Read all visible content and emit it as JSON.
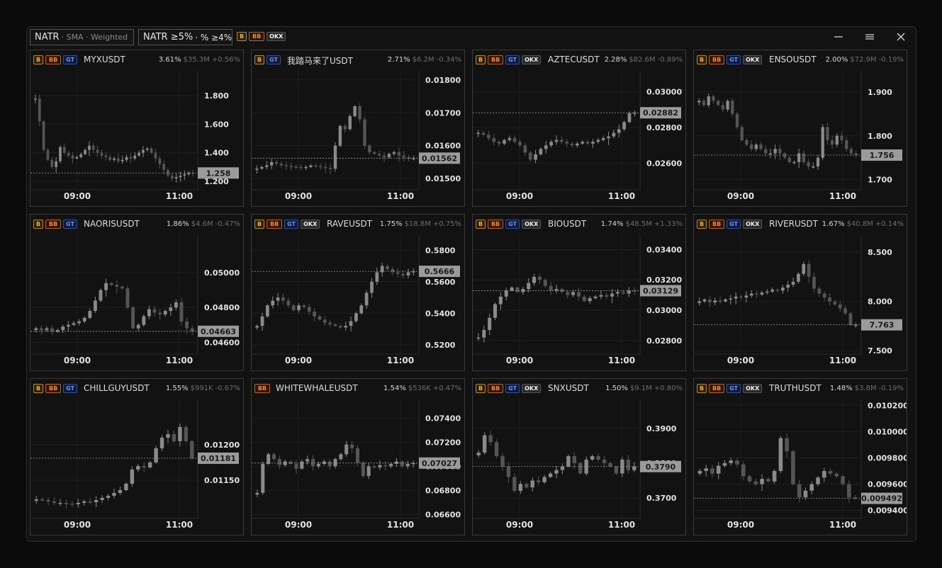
{
  "toolbar": {
    "natr_label": "NATR",
    "natr_sub": "· SMA · Weighted",
    "filter_label": "NATR ≥5%",
    "filter_sub": "· % ≥4%",
    "exchanges": [
      "B",
      "BB",
      "OKX"
    ]
  },
  "window_controls": {
    "minimize": "—",
    "maximize": "☰",
    "close": "✕"
  },
  "colors": {
    "accent_B": "#e8b335",
    "accent_BB": "#f0883a",
    "accent_GT": "#6d95ee",
    "accent_OKX": "#f0f0f0",
    "candle_up": "#8a8a8a",
    "candle_down": "#555555"
  },
  "panels": [
    {
      "symbol": "MYXUSDT",
      "exchanges": [
        "B",
        "BB",
        "GT"
      ],
      "natr": "3.61%",
      "volume": "$35.3M",
      "change": "+0.56%",
      "ticks": [
        "1.800",
        "1.600",
        "1.400",
        "1.200"
      ],
      "tick_values": [
        1.8,
        1.6,
        1.4,
        1.2
      ],
      "ymin": 1.15,
      "ymax": 1.98,
      "price": "1.258",
      "price_value": 1.258,
      "time_labels": [
        "09:00",
        "11:00"
      ],
      "series": [
        1.78,
        1.62,
        1.42,
        1.35,
        1.3,
        1.34,
        1.44,
        1.4,
        1.38,
        1.36,
        1.37,
        1.39,
        1.42,
        1.45,
        1.42,
        1.4,
        1.38,
        1.37,
        1.35,
        1.36,
        1.34,
        1.35,
        1.37,
        1.36,
        1.38,
        1.4,
        1.42,
        1.43,
        1.4,
        1.36,
        1.32,
        1.28,
        1.24,
        1.22,
        1.23,
        1.24,
        1.25,
        1.26,
        1.258
      ]
    },
    {
      "symbol": "我踏马来了USDT",
      "exchanges": [
        "B",
        "GT"
      ],
      "natr": "2.71%",
      "volume": "$6.2M",
      "change": "-0.34%",
      "ticks": [
        "0.01800",
        "0.01700",
        "0.01600",
        "0.01500"
      ],
      "tick_values": [
        0.018,
        0.017,
        0.016,
        0.015
      ],
      "ymin": 0.0147,
      "ymax": 0.0183,
      "price": "0.01562",
      "price_value": 0.01562,
      "time_labels": [
        "09:00",
        "11:00"
      ],
      "series": [
        0.0153,
        0.01535,
        0.0154,
        0.0155,
        0.01545,
        0.0154,
        0.01538,
        0.01536,
        0.01535,
        0.01533,
        0.01535,
        0.0154,
        0.01538,
        0.01535,
        0.01532,
        0.0153,
        0.016,
        0.0166,
        0.0165,
        0.0169,
        0.0172,
        0.0168,
        0.016,
        0.0158,
        0.01575,
        0.0157,
        0.01565,
        0.01575,
        0.0158,
        0.0157,
        0.01565,
        0.0156,
        0.01562
      ]
    },
    {
      "symbol": "AZTECUSDT",
      "exchanges": [
        "B",
        "BB",
        "GT",
        "OKX"
      ],
      "natr": "2.28%",
      "volume": "$82.6M",
      "change": "-0.89%",
      "ticks": [
        "0.03000",
        "0.02800",
        "0.02600"
      ],
      "tick_values": [
        0.03,
        0.028,
        0.026
      ],
      "ymin": 0.0246,
      "ymax": 0.0312,
      "price": "0.02882",
      "price_value": 0.02882,
      "time_labels": [
        "09:00",
        "11:00"
      ],
      "series": [
        0.0277,
        0.0276,
        0.0274,
        0.0272,
        0.0271,
        0.0273,
        0.0274,
        0.0272,
        0.027,
        0.0266,
        0.0262,
        0.0265,
        0.0268,
        0.027,
        0.0272,
        0.0273,
        0.0272,
        0.0271,
        0.027,
        0.0271,
        0.0272,
        0.0271,
        0.0272,
        0.0273,
        0.0274,
        0.0275,
        0.0277,
        0.0279,
        0.0283,
        0.0288,
        0.02882
      ]
    },
    {
      "symbol": "ENSOUSDT",
      "exchanges": [
        "B",
        "BB",
        "GT",
        "OKX"
      ],
      "natr": "2.00%",
      "volume": "$72.9M",
      "change": "-0.19%",
      "ticks": [
        "1.900",
        "1.800",
        "1.700"
      ],
      "tick_values": [
        1.9,
        1.8,
        1.7
      ],
      "ymin": 1.68,
      "ymax": 1.95,
      "price": "1.756",
      "price_value": 1.756,
      "time_labels": [
        "09:00",
        "11:00"
      ],
      "series": [
        1.88,
        1.87,
        1.89,
        1.88,
        1.87,
        1.86,
        1.88,
        1.85,
        1.82,
        1.79,
        1.78,
        1.77,
        1.78,
        1.77,
        1.76,
        1.76,
        1.77,
        1.76,
        1.75,
        1.74,
        1.74,
        1.76,
        1.74,
        1.73,
        1.73,
        1.75,
        1.82,
        1.79,
        1.78,
        1.8,
        1.79,
        1.77,
        1.76,
        1.756
      ]
    },
    {
      "symbol": "NAORISUSDT",
      "exchanges": [
        "B",
        "BB",
        "GT"
      ],
      "natr": "1.86%",
      "volume": "$4.6M",
      "change": "-0.47%",
      "ticks": [
        "0.05000",
        "0.04800",
        "0.04600"
      ],
      "tick_values": [
        0.05,
        0.048,
        0.046
      ],
      "ymin": 0.0454,
      "ymax": 0.0522,
      "price": "0.04663",
      "price_value": 0.04663,
      "time_labels": [
        "09:00",
        "11:00"
      ],
      "series": [
        0.0468,
        0.0467,
        0.0468,
        0.0466,
        0.0467,
        0.0469,
        0.047,
        0.0471,
        0.0472,
        0.0474,
        0.0478,
        0.0484,
        0.049,
        0.0494,
        0.0493,
        0.0492,
        0.0491,
        0.048,
        0.0468,
        0.047,
        0.0475,
        0.0479,
        0.0477,
        0.0476,
        0.0478,
        0.048,
        0.0483,
        0.0472,
        0.0468,
        0.04663
      ]
    },
    {
      "symbol": "RAVEUSDT",
      "exchanges": [
        "B",
        "BB",
        "GT",
        "OKX"
      ],
      "natr": "1.75%",
      "volume": "$18.8M",
      "change": "+0.75%",
      "ticks": [
        "0.5800",
        "0.5600",
        "0.5400",
        "0.5200"
      ],
      "tick_values": [
        0.58,
        0.56,
        0.54,
        0.52
      ],
      "ymin": 0.515,
      "ymax": 0.59,
      "price": "0.5666",
      "price_value": 0.5666,
      "time_labels": [
        "09:00",
        "11:00"
      ],
      "series": [
        0.532,
        0.538,
        0.545,
        0.548,
        0.55,
        0.548,
        0.545,
        0.542,
        0.545,
        0.544,
        0.541,
        0.538,
        0.536,
        0.534,
        0.533,
        0.532,
        0.531,
        0.532,
        0.535,
        0.54,
        0.545,
        0.553,
        0.56,
        0.566,
        0.57,
        0.568,
        0.566,
        0.565,
        0.564,
        0.566,
        0.5666
      ]
    },
    {
      "symbol": "BIOUSDT",
      "exchanges": [
        "B",
        "BB",
        "GT",
        "OKX"
      ],
      "natr": "1.74%",
      "volume": "$48.5M",
      "change": "+1.33%",
      "ticks": [
        "0.03400",
        "0.03200",
        "0.03000",
        "0.02800"
      ],
      "tick_values": [
        0.034,
        0.032,
        0.03,
        0.028
      ],
      "ymin": 0.0272,
      "ymax": 0.035,
      "price": "0.03129",
      "price_value": 0.03129,
      "time_labels": [
        "09:00",
        "11:00"
      ],
      "series": [
        0.0282,
        0.0287,
        0.0295,
        0.0304,
        0.0309,
        0.0313,
        0.0315,
        0.0312,
        0.0314,
        0.0318,
        0.0322,
        0.032,
        0.0316,
        0.0313,
        0.0314,
        0.0312,
        0.031,
        0.0312,
        0.0309,
        0.0306,
        0.0308,
        0.0309,
        0.031,
        0.0309,
        0.0311,
        0.0312,
        0.0311,
        0.0313,
        0.03129
      ]
    },
    {
      "symbol": "RIVERUSDT",
      "exchanges": [
        "B",
        "BB",
        "GT",
        "OKX"
      ],
      "natr": "1.67%",
      "volume": "$40.8M",
      "change": "+0.14%",
      "ticks": [
        "8.500",
        "8.000",
        "7.500"
      ],
      "tick_values": [
        8.5,
        8.0,
        7.5
      ],
      "ymin": 7.48,
      "ymax": 8.68,
      "price": "7.763",
      "price_value": 7.763,
      "time_labels": [
        "09:00",
        "11:00"
      ],
      "series": [
        8.0,
        8.02,
        7.99,
        8.01,
        8.0,
        8.02,
        8.03,
        8.05,
        8.04,
        8.06,
        8.08,
        8.07,
        8.09,
        8.1,
        8.12,
        8.11,
        8.14,
        8.17,
        8.2,
        8.28,
        8.38,
        8.25,
        8.13,
        8.08,
        8.04,
        8.0,
        7.97,
        7.93,
        7.88,
        7.76,
        7.763
      ]
    },
    {
      "symbol": "CHILLGUYUSDT",
      "exchanges": [
        "B",
        "BB",
        "GT"
      ],
      "natr": "1.55%",
      "volume": "$991K",
      "change": "-0.67%",
      "ticks": [
        "0.01200",
        "0.01150"
      ],
      "tick_values": [
        0.012,
        0.0115
      ],
      "ymin": 0.01098,
      "ymax": 0.01265,
      "price": "0.01181",
      "price_value": 0.01181,
      "time_labels": [
        "09:00",
        "11:00"
      ],
      "series": [
        0.01123,
        0.01122,
        0.0112,
        0.01118,
        0.01118,
        0.01117,
        0.01116,
        0.01118,
        0.0112,
        0.01119,
        0.01122,
        0.01125,
        0.01128,
        0.01132,
        0.01136,
        0.01145,
        0.01165,
        0.0117,
        0.01168,
        0.01175,
        0.01195,
        0.0121,
        0.01215,
        0.01205,
        0.01225,
        0.01205,
        0.01181
      ]
    },
    {
      "symbol": "WHITEWHALEUSDT",
      "exchanges": [
        "BB"
      ],
      "natr": "1.54%",
      "volume": "$536K",
      "change": "+0.47%",
      "ticks": [
        "0.07400",
        "0.07200",
        "0.07000",
        "0.06800",
        "0.06600"
      ],
      "tick_values": [
        0.074,
        0.072,
        0.07,
        0.068,
        0.066
      ],
      "ymin": 0.0658,
      "ymax": 0.0756,
      "price": "0.07027",
      "price_value": 0.07027,
      "time_labels": [
        "09:00",
        "11:00"
      ],
      "series": [
        0.0678,
        0.0702,
        0.071,
        0.0706,
        0.0701,
        0.0704,
        0.0702,
        0.0698,
        0.0704,
        0.0706,
        0.07,
        0.0702,
        0.0704,
        0.07,
        0.0706,
        0.071,
        0.0718,
        0.0715,
        0.0703,
        0.0692,
        0.07,
        0.0699,
        0.0701,
        0.07,
        0.0702,
        0.0704,
        0.07,
        0.0702,
        0.07027
      ]
    },
    {
      "symbol": "SNXUSDT",
      "exchanges": [
        "B",
        "BB",
        "GT",
        "OKX"
      ],
      "natr": "1.50%",
      "volume": "$9.1M",
      "change": "+0.80%",
      "ticks": [
        "0.3900",
        "0.3800",
        "0.3700"
      ],
      "tick_values": [
        0.39,
        0.38,
        0.37
      ],
      "ymin": 0.3645,
      "ymax": 0.3985,
      "price": "0.3790",
      "price_value": 0.379,
      "time_labels": [
        "09:00",
        "11:00"
      ],
      "series": [
        0.383,
        0.388,
        0.386,
        0.382,
        0.379,
        0.376,
        0.372,
        0.374,
        0.373,
        0.375,
        0.3745,
        0.376,
        0.377,
        0.378,
        0.379,
        0.382,
        0.38,
        0.377,
        0.381,
        0.382,
        0.381,
        0.38,
        0.379,
        0.377,
        0.381,
        0.378,
        0.379
      ]
    },
    {
      "symbol": "TRUTHUSDT",
      "exchanges": [
        "B",
        "BB",
        "GT",
        "OKX"
      ],
      "natr": "1.48%",
      "volume": "$3.8M",
      "change": "-0.19%",
      "ticks": [
        "0.010200",
        "0.010000",
        "0.009800",
        "0.009600",
        "0.009400"
      ],
      "tick_values": [
        0.0102,
        0.01,
        0.0098,
        0.0096,
        0.0094
      ],
      "ymin": 0.00935,
      "ymax": 0.01025,
      "price": "0.009492",
      "price_value": 0.009492,
      "time_labels": [
        "09:00",
        "11:00"
      ],
      "series": [
        0.0097,
        0.00972,
        0.00968,
        0.00974,
        0.00976,
        0.00978,
        0.00975,
        0.00966,
        0.00962,
        0.0096,
        0.00964,
        0.00962,
        0.0097,
        0.00995,
        0.00985,
        0.0096,
        0.0095,
        0.00955,
        0.0096,
        0.00965,
        0.0097,
        0.00968,
        0.00966,
        0.0096,
        0.0095,
        0.009492
      ]
    }
  ]
}
